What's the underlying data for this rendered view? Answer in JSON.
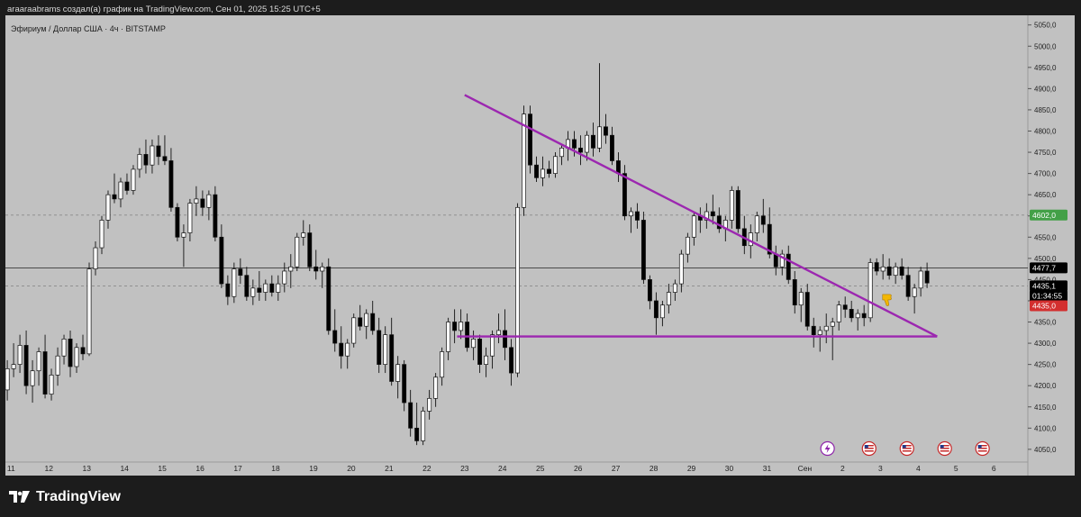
{
  "header": {
    "caption": "araaraabrams создал(а) график на TradingView.com, Сен 01, 2025 15:25 UTC+5"
  },
  "symbol": {
    "title": "Эфириум / Доллар США · 4ч · BITSTAMP"
  },
  "footer": {
    "brand": "TradingView",
    "logo_icon": "tradingview-logo-icon"
  },
  "colors": {
    "background": "#c1c1c1",
    "bull_candle": "#ffffff",
    "bear_candle": "#000000",
    "pattern_line": "#9c27b0",
    "current_price_badge": "#000000",
    "countdown_badge": "#000000",
    "level_badge": "#d32f2f",
    "resistance_badge": "#43a047"
  },
  "chart_data": {
    "type": "candlestick",
    "title": "Эфириум / Доллар США · 4ч · BITSTAMP",
    "ylabel": "",
    "ylim": [
      4020,
      5060
    ],
    "y_ticks": [
      4050,
      4100,
      4150,
      4200,
      4250,
      4300,
      4350,
      4400,
      4450,
      4500,
      4550,
      4600,
      4650,
      4700,
      4750,
      4800,
      4850,
      4900,
      4950,
      5000,
      5050
    ],
    "y_tick_labels": [
      "4050,0",
      "4100,0",
      "4150,0",
      "4200,0",
      "4250,0",
      "4300,0",
      "4350,0",
      "4400,0",
      "4450,0",
      "4500,0",
      "4550,0",
      "4600,0",
      "4650,0",
      "4700,0",
      "4750,0",
      "4800,0",
      "4850,0",
      "4900,0",
      "4950,0",
      "5000,0",
      "5050,0"
    ],
    "x_tick_labels": [
      "11",
      "12",
      "13",
      "14",
      "15",
      "16",
      "17",
      "18",
      "19",
      "20",
      "21",
      "22",
      "23",
      "24",
      "25",
      "26",
      "27",
      "28",
      "29",
      "30",
      "31",
      "Сен",
      "2",
      "3",
      "4",
      "5",
      "6"
    ],
    "x_label_days": [
      11,
      12,
      13,
      14,
      15,
      16,
      17,
      18,
      19,
      20,
      21,
      22,
      23,
      24,
      25,
      26,
      27,
      28,
      29,
      30,
      31,
      32,
      33,
      34,
      35,
      36,
      37
    ],
    "xlim_days": [
      10.85,
      37.9
    ],
    "candles_per_day": 6,
    "first_candle_day": 10.9,
    "ohlc": [
      [
        4190,
        4260,
        4165,
        4240
      ],
      [
        4240,
        4300,
        4220,
        4250
      ],
      [
        4250,
        4320,
        4230,
        4295
      ],
      [
        4295,
        4330,
        4180,
        4200
      ],
      [
        4200,
        4260,
        4160,
        4235
      ],
      [
        4235,
        4290,
        4200,
        4280
      ],
      [
        4280,
        4320,
        4170,
        4180
      ],
      [
        4180,
        4240,
        4165,
        4225
      ],
      [
        4225,
        4290,
        4200,
        4270
      ],
      [
        4270,
        4320,
        4250,
        4310
      ],
      [
        4310,
        4330,
        4220,
        4245
      ],
      [
        4245,
        4300,
        4230,
        4290
      ],
      [
        4290,
        4320,
        4260,
        4275
      ],
      [
        4275,
        4490,
        4270,
        4475
      ],
      [
        4475,
        4540,
        4460,
        4525
      ],
      [
        4525,
        4600,
        4510,
        4590
      ],
      [
        4590,
        4660,
        4570,
        4650
      ],
      [
        4650,
        4700,
        4630,
        4640
      ],
      [
        4640,
        4690,
        4620,
        4680
      ],
      [
        4680,
        4700,
        4650,
        4660
      ],
      [
        4660,
        4720,
        4650,
        4710
      ],
      [
        4710,
        4760,
        4690,
        4745
      ],
      [
        4745,
        4780,
        4700,
        4720
      ],
      [
        4720,
        4780,
        4700,
        4765
      ],
      [
        4765,
        4790,
        4720,
        4740
      ],
      [
        4740,
        4790,
        4720,
        4730
      ],
      [
        4730,
        4760,
        4610,
        4620
      ],
      [
        4620,
        4630,
        4540,
        4550
      ],
      [
        4550,
        4580,
        4480,
        4560
      ],
      [
        4560,
        4640,
        4540,
        4630
      ],
      [
        4630,
        4670,
        4600,
        4640
      ],
      [
        4640,
        4660,
        4600,
        4620
      ],
      [
        4620,
        4660,
        4590,
        4650
      ],
      [
        4650,
        4670,
        4540,
        4550
      ],
      [
        4550,
        4580,
        4430,
        4440
      ],
      [
        4440,
        4460,
        4390,
        4410
      ],
      [
        4410,
        4490,
        4395,
        4475
      ],
      [
        4475,
        4500,
        4440,
        4460
      ],
      [
        4460,
        4480,
        4400,
        4410
      ],
      [
        4410,
        4450,
        4390,
        4430
      ],
      [
        4430,
        4470,
        4400,
        4420
      ],
      [
        4420,
        4450,
        4400,
        4440
      ],
      [
        4440,
        4460,
        4410,
        4420
      ],
      [
        4420,
        4460,
        4400,
        4440
      ],
      [
        4440,
        4490,
        4420,
        4470
      ],
      [
        4470,
        4510,
        4430,
        4480
      ],
      [
        4480,
        4560,
        4470,
        4550
      ],
      [
        4550,
        4590,
        4530,
        4560
      ],
      [
        4560,
        4580,
        4470,
        4480
      ],
      [
        4480,
        4520,
        4450,
        4470
      ],
      [
        4470,
        4490,
        4430,
        4480
      ],
      [
        4480,
        4500,
        4320,
        4330
      ],
      [
        4330,
        4380,
        4280,
        4300
      ],
      [
        4300,
        4340,
        4240,
        4270
      ],
      [
        4270,
        4310,
        4240,
        4300
      ],
      [
        4300,
        4370,
        4290,
        4360
      ],
      [
        4360,
        4390,
        4330,
        4340
      ],
      [
        4340,
        4380,
        4310,
        4370
      ],
      [
        4370,
        4400,
        4320,
        4330
      ],
      [
        4330,
        4360,
        4230,
        4250
      ],
      [
        4250,
        4340,
        4230,
        4320
      ],
      [
        4320,
        4360,
        4200,
        4210
      ],
      [
        4210,
        4270,
        4170,
        4250
      ],
      [
        4250,
        4260,
        4140,
        4160
      ],
      [
        4160,
        4190,
        4080,
        4100
      ],
      [
        4100,
        4160,
        4060,
        4070
      ],
      [
        4070,
        4150,
        4060,
        4140
      ],
      [
        4140,
        4190,
        4120,
        4170
      ],
      [
        4170,
        4230,
        4150,
        4220
      ],
      [
        4220,
        4290,
        4200,
        4280
      ],
      [
        4280,
        4360,
        4260,
        4350
      ],
      [
        4350,
        4380,
        4300,
        4330
      ],
      [
        4330,
        4380,
        4310,
        4350
      ],
      [
        4350,
        4370,
        4280,
        4290
      ],
      [
        4290,
        4330,
        4260,
        4310
      ],
      [
        4310,
        4320,
        4230,
        4250
      ],
      [
        4250,
        4290,
        4220,
        4270
      ],
      [
        4270,
        4330,
        4240,
        4320
      ],
      [
        4320,
        4370,
        4300,
        4330
      ],
      [
        4330,
        4380,
        4260,
        4290
      ],
      [
        4290,
        4310,
        4200,
        4230
      ],
      [
        4230,
        4630,
        4220,
        4620
      ],
      [
        4620,
        4860,
        4600,
        4840
      ],
      [
        4840,
        4860,
        4700,
        4720
      ],
      [
        4720,
        4740,
        4680,
        4690
      ],
      [
        4690,
        4740,
        4670,
        4710
      ],
      [
        4710,
        4730,
        4690,
        4700
      ],
      [
        4700,
        4750,
        4690,
        4740
      ],
      [
        4740,
        4770,
        4720,
        4760
      ],
      [
        4760,
        4800,
        4730,
        4780
      ],
      [
        4780,
        4800,
        4740,
        4760
      ],
      [
        4760,
        4790,
        4720,
        4750
      ],
      [
        4750,
        4800,
        4730,
        4790
      ],
      [
        4790,
        4820,
        4740,
        4760
      ],
      [
        4760,
        4960,
        4750,
        4810
      ],
      [
        4810,
        4840,
        4770,
        4790
      ],
      [
        4790,
        4810,
        4720,
        4730
      ],
      [
        4730,
        4750,
        4680,
        4700
      ],
      [
        4700,
        4720,
        4590,
        4600
      ],
      [
        4600,
        4620,
        4560,
        4610
      ],
      [
        4610,
        4630,
        4570,
        4590
      ],
      [
        4590,
        4610,
        4440,
        4450
      ],
      [
        4450,
        4460,
        4380,
        4400
      ],
      [
        4400,
        4420,
        4320,
        4360
      ],
      [
        4360,
        4400,
        4340,
        4390
      ],
      [
        4390,
        4440,
        4370,
        4420
      ],
      [
        4420,
        4450,
        4400,
        4440
      ],
      [
        4440,
        4520,
        4420,
        4510
      ],
      [
        4510,
        4560,
        4490,
        4550
      ],
      [
        4550,
        4610,
        4530,
        4600
      ],
      [
        4600,
        4620,
        4560,
        4590
      ],
      [
        4590,
        4630,
        4570,
        4610
      ],
      [
        4610,
        4650,
        4580,
        4600
      ],
      [
        4600,
        4620,
        4560,
        4570
      ],
      [
        4570,
        4600,
        4540,
        4590
      ],
      [
        4590,
        4670,
        4570,
        4660
      ],
      [
        4660,
        4670,
        4560,
        4570
      ],
      [
        4570,
        4600,
        4510,
        4530
      ],
      [
        4530,
        4580,
        4500,
        4560
      ],
      [
        4560,
        4610,
        4540,
        4600
      ],
      [
        4600,
        4640,
        4560,
        4580
      ],
      [
        4580,
        4620,
        4500,
        4510
      ],
      [
        4510,
        4530,
        4460,
        4480
      ],
      [
        4480,
        4520,
        4460,
        4510
      ],
      [
        4510,
        4530,
        4440,
        4450
      ],
      [
        4450,
        4470,
        4370,
        4390
      ],
      [
        4390,
        4430,
        4350,
        4420
      ],
      [
        4420,
        4440,
        4330,
        4340
      ],
      [
        4340,
        4360,
        4290,
        4320
      ],
      [
        4320,
        4340,
        4280,
        4330
      ],
      [
        4330,
        4370,
        4300,
        4340
      ],
      [
        4340,
        4360,
        4260,
        4350
      ],
      [
        4350,
        4400,
        4330,
        4390
      ],
      [
        4390,
        4410,
        4360,
        4380
      ],
      [
        4380,
        4400,
        4350,
        4360
      ],
      [
        4360,
        4380,
        4330,
        4370
      ],
      [
        4370,
        4390,
        4340,
        4360
      ],
      [
        4360,
        4500,
        4350,
        4490
      ],
      [
        4490,
        4500,
        4460,
        4470
      ],
      [
        4470,
        4510,
        4450,
        4480
      ],
      [
        4480,
        4500,
        4450,
        4460
      ],
      [
        4460,
        4490,
        4440,
        4480
      ],
      [
        4480,
        4500,
        4450,
        4460
      ],
      [
        4460,
        4480,
        4400,
        4410
      ],
      [
        4410,
        4440,
        4370,
        4430
      ],
      [
        4430,
        4480,
        4410,
        4470
      ],
      [
        4470,
        4490,
        4430,
        4442
      ]
    ],
    "trendlines": [
      {
        "kind": "descending-resistance",
        "from": [
          23.0,
          4885
        ],
        "to": [
          35.5,
          4316
        ]
      },
      {
        "kind": "horizontal-support",
        "from": [
          22.8,
          4316
        ],
        "to": [
          35.5,
          4316
        ]
      }
    ],
    "price_levels": [
      {
        "label": "4602,0",
        "value": 4602,
        "kind": "resistance"
      },
      {
        "label": "4477,7",
        "value": 4477.7,
        "kind": "reference"
      },
      {
        "label": "4435,1",
        "value": 4435.1,
        "kind": "current"
      },
      {
        "label": "01:34:55",
        "value": 4435.1,
        "kind": "countdown"
      },
      {
        "label": "4435,0",
        "value": 4435.0,
        "kind": "level"
      }
    ],
    "grid": false,
    "events": [
      {
        "day": 32.6,
        "icon": "lightning-icon"
      },
      {
        "day": 33.7,
        "icon": "us-flag-icon"
      },
      {
        "day": 34.7,
        "icon": "us-flag-icon"
      },
      {
        "day": 35.7,
        "icon": "us-flag-icon"
      },
      {
        "day": 36.7,
        "icon": "us-flag-icon"
      }
    ],
    "annotation_icon": "thumbs-down-icon"
  }
}
